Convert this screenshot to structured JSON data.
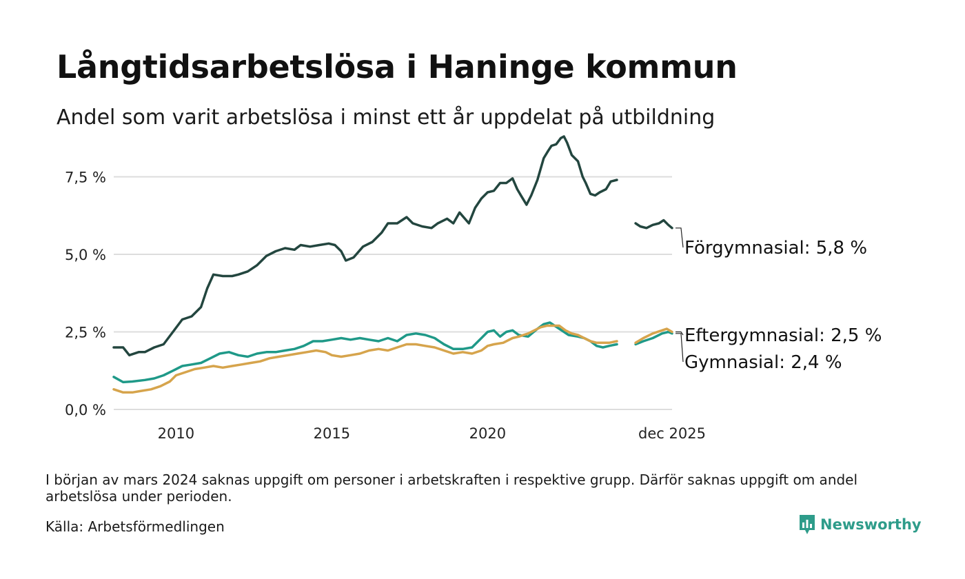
{
  "title": "Långtidsarbetslösa i Haninge kommun",
  "subtitle": "Andel som varit arbetslösa i minst ett år uppdelat på utbildning",
  "footnote": "I början av mars 2024 saknas uppgift om personer i arbetskraften i respektive grupp. Därför saknas uppgift om andel arbetslösa under perioden.",
  "source": "Källa: Arbetsförmedlingen",
  "brand": "Newsworthy",
  "colors": {
    "forgymnasial": "#23463f",
    "gymnasial": "#1f9988",
    "eftergymnasial": "#d6a44c",
    "grid": "#dddddd",
    "brand": "#2e9c8a"
  },
  "chart_data": {
    "type": "line",
    "title": "Långtidsarbetslösa i Haninge kommun",
    "xlabel": "",
    "ylabel": "",
    "xlim": [
      2008.0,
      2025.92
    ],
    "ylim": [
      0,
      9
    ],
    "x_ticks": [
      {
        "value": 2010,
        "label": "2010"
      },
      {
        "value": 2015,
        "label": "2015"
      },
      {
        "value": 2020,
        "label": "2020"
      },
      {
        "value": 2025.92,
        "label": "dec 2025"
      }
    ],
    "y_ticks": [
      {
        "value": 0,
        "label": "0,0 %"
      },
      {
        "value": 2.5,
        "label": "2,5 %"
      },
      {
        "value": 5.0,
        "label": "5,0 %"
      },
      {
        "value": 7.5,
        "label": "7,5 %"
      }
    ],
    "gap": [
      2023.67,
      2024.25
    ],
    "series": [
      {
        "name": "Förgymnasial",
        "label": "Förgymnasial: 5,8 %",
        "color": "#23463f",
        "points": [
          [
            2008.0,
            2.0
          ],
          [
            2008.3,
            2.0
          ],
          [
            2008.5,
            1.75
          ],
          [
            2008.8,
            1.85
          ],
          [
            2009.0,
            1.85
          ],
          [
            2009.3,
            2.0
          ],
          [
            2009.6,
            2.1
          ],
          [
            2009.9,
            2.5
          ],
          [
            2010.2,
            2.9
          ],
          [
            2010.5,
            3.0
          ],
          [
            2010.8,
            3.3
          ],
          [
            2011.0,
            3.9
          ],
          [
            2011.2,
            4.35
          ],
          [
            2011.5,
            4.3
          ],
          [
            2011.8,
            4.3
          ],
          [
            2012.0,
            4.35
          ],
          [
            2012.3,
            4.45
          ],
          [
            2012.6,
            4.65
          ],
          [
            2012.9,
            4.95
          ],
          [
            2013.2,
            5.1
          ],
          [
            2013.5,
            5.2
          ],
          [
            2013.8,
            5.15
          ],
          [
            2014.0,
            5.3
          ],
          [
            2014.3,
            5.25
          ],
          [
            2014.6,
            5.3
          ],
          [
            2014.9,
            5.35
          ],
          [
            2015.1,
            5.3
          ],
          [
            2015.3,
            5.1
          ],
          [
            2015.45,
            4.8
          ],
          [
            2015.7,
            4.9
          ],
          [
            2016.0,
            5.25
          ],
          [
            2016.3,
            5.4
          ],
          [
            2016.6,
            5.7
          ],
          [
            2016.8,
            6.0
          ],
          [
            2017.1,
            6.0
          ],
          [
            2017.4,
            6.2
          ],
          [
            2017.6,
            6.0
          ],
          [
            2017.9,
            5.9
          ],
          [
            2018.2,
            5.85
          ],
          [
            2018.4,
            6.0
          ],
          [
            2018.7,
            6.15
          ],
          [
            2018.9,
            6.0
          ],
          [
            2019.1,
            6.35
          ],
          [
            2019.4,
            6.0
          ],
          [
            2019.6,
            6.5
          ],
          [
            2019.8,
            6.8
          ],
          [
            2020.0,
            7.0
          ],
          [
            2020.2,
            7.05
          ],
          [
            2020.4,
            7.3
          ],
          [
            2020.6,
            7.3
          ],
          [
            2020.8,
            7.45
          ],
          [
            2020.95,
            7.1
          ],
          [
            2021.1,
            6.85
          ],
          [
            2021.25,
            6.6
          ],
          [
            2021.4,
            6.9
          ],
          [
            2021.6,
            7.4
          ],
          [
            2021.8,
            8.1
          ],
          [
            2021.95,
            8.35
          ],
          [
            2022.05,
            8.5
          ],
          [
            2022.2,
            8.55
          ],
          [
            2022.35,
            8.75
          ],
          [
            2022.45,
            8.8
          ],
          [
            2022.55,
            8.6
          ],
          [
            2022.7,
            8.2
          ],
          [
            2022.9,
            8.0
          ],
          [
            2023.05,
            7.5
          ],
          [
            2023.15,
            7.3
          ],
          [
            2023.3,
            6.95
          ],
          [
            2023.45,
            6.9
          ],
          [
            2023.6,
            7.0
          ],
          [
            2023.8,
            7.1
          ],
          [
            2023.95,
            7.35
          ],
          [
            2024.15,
            7.4
          ],
          [
            null,
            null
          ],
          [
            2024.75,
            6.0
          ],
          [
            2024.9,
            5.9
          ],
          [
            2025.1,
            5.85
          ],
          [
            2025.3,
            5.95
          ],
          [
            2025.5,
            6.0
          ],
          [
            2025.65,
            6.1
          ],
          [
            2025.8,
            5.95
          ],
          [
            2025.92,
            5.85
          ]
        ]
      },
      {
        "name": "Gymnasial",
        "label": "Gymnasial: 2,4 %",
        "color": "#1f9988",
        "points": [
          [
            2008.0,
            1.05
          ],
          [
            2008.3,
            0.88
          ],
          [
            2008.6,
            0.9
          ],
          [
            2009.0,
            0.95
          ],
          [
            2009.3,
            1.0
          ],
          [
            2009.6,
            1.1
          ],
          [
            2009.9,
            1.25
          ],
          [
            2010.2,
            1.4
          ],
          [
            2010.5,
            1.45
          ],
          [
            2010.8,
            1.5
          ],
          [
            2011.1,
            1.65
          ],
          [
            2011.4,
            1.8
          ],
          [
            2011.7,
            1.85
          ],
          [
            2012.0,
            1.75
          ],
          [
            2012.3,
            1.7
          ],
          [
            2012.6,
            1.8
          ],
          [
            2012.9,
            1.85
          ],
          [
            2013.2,
            1.85
          ],
          [
            2013.5,
            1.9
          ],
          [
            2013.8,
            1.95
          ],
          [
            2014.1,
            2.05
          ],
          [
            2014.4,
            2.2
          ],
          [
            2014.7,
            2.2
          ],
          [
            2015.0,
            2.25
          ],
          [
            2015.3,
            2.3
          ],
          [
            2015.6,
            2.25
          ],
          [
            2015.9,
            2.3
          ],
          [
            2016.2,
            2.25
          ],
          [
            2016.5,
            2.2
          ],
          [
            2016.8,
            2.3
          ],
          [
            2017.1,
            2.2
          ],
          [
            2017.4,
            2.4
          ],
          [
            2017.7,
            2.45
          ],
          [
            2018.0,
            2.4
          ],
          [
            2018.3,
            2.3
          ],
          [
            2018.6,
            2.1
          ],
          [
            2018.9,
            1.95
          ],
          [
            2019.2,
            1.95
          ],
          [
            2019.5,
            2.0
          ],
          [
            2019.8,
            2.3
          ],
          [
            2020.0,
            2.5
          ],
          [
            2020.2,
            2.55
          ],
          [
            2020.4,
            2.35
          ],
          [
            2020.6,
            2.5
          ],
          [
            2020.8,
            2.55
          ],
          [
            2021.0,
            2.4
          ],
          [
            2021.3,
            2.35
          ],
          [
            2021.6,
            2.6
          ],
          [
            2021.8,
            2.75
          ],
          [
            2022.0,
            2.8
          ],
          [
            2022.3,
            2.6
          ],
          [
            2022.6,
            2.4
          ],
          [
            2022.9,
            2.35
          ],
          [
            2023.1,
            2.3
          ],
          [
            2023.3,
            2.2
          ],
          [
            2023.5,
            2.05
          ],
          [
            2023.7,
            2.0
          ],
          [
            2023.9,
            2.05
          ],
          [
            2024.15,
            2.1
          ],
          [
            null,
            null
          ],
          [
            2024.75,
            2.1
          ],
          [
            2025.0,
            2.2
          ],
          [
            2025.3,
            2.3
          ],
          [
            2025.6,
            2.45
          ],
          [
            2025.8,
            2.5
          ],
          [
            2025.92,
            2.45
          ]
        ]
      },
      {
        "name": "Eftergymnasial",
        "label": "Eftergymnasial: 2,5 %",
        "color": "#d6a44c",
        "points": [
          [
            2008.0,
            0.65
          ],
          [
            2008.3,
            0.55
          ],
          [
            2008.6,
            0.55
          ],
          [
            2008.9,
            0.6
          ],
          [
            2009.2,
            0.65
          ],
          [
            2009.5,
            0.75
          ],
          [
            2009.8,
            0.9
          ],
          [
            2010.0,
            1.1
          ],
          [
            2010.3,
            1.2
          ],
          [
            2010.6,
            1.3
          ],
          [
            2010.9,
            1.35
          ],
          [
            2011.2,
            1.4
          ],
          [
            2011.5,
            1.35
          ],
          [
            2011.8,
            1.4
          ],
          [
            2012.1,
            1.45
          ],
          [
            2012.4,
            1.5
          ],
          [
            2012.7,
            1.55
          ],
          [
            2013.0,
            1.65
          ],
          [
            2013.3,
            1.7
          ],
          [
            2013.6,
            1.75
          ],
          [
            2013.9,
            1.8
          ],
          [
            2014.2,
            1.85
          ],
          [
            2014.5,
            1.9
          ],
          [
            2014.8,
            1.85
          ],
          [
            2015.0,
            1.75
          ],
          [
            2015.3,
            1.7
          ],
          [
            2015.6,
            1.75
          ],
          [
            2015.9,
            1.8
          ],
          [
            2016.2,
            1.9
          ],
          [
            2016.5,
            1.95
          ],
          [
            2016.8,
            1.9
          ],
          [
            2017.1,
            2.0
          ],
          [
            2017.4,
            2.1
          ],
          [
            2017.7,
            2.1
          ],
          [
            2018.0,
            2.05
          ],
          [
            2018.3,
            2.0
          ],
          [
            2018.6,
            1.9
          ],
          [
            2018.9,
            1.8
          ],
          [
            2019.2,
            1.85
          ],
          [
            2019.5,
            1.8
          ],
          [
            2019.8,
            1.9
          ],
          [
            2020.0,
            2.05
          ],
          [
            2020.2,
            2.1
          ],
          [
            2020.5,
            2.15
          ],
          [
            2020.8,
            2.3
          ],
          [
            2021.0,
            2.35
          ],
          [
            2021.3,
            2.45
          ],
          [
            2021.5,
            2.55
          ],
          [
            2021.7,
            2.65
          ],
          [
            2021.9,
            2.7
          ],
          [
            2022.1,
            2.7
          ],
          [
            2022.3,
            2.7
          ],
          [
            2022.5,
            2.55
          ],
          [
            2022.7,
            2.45
          ],
          [
            2022.9,
            2.4
          ],
          [
            2023.1,
            2.3
          ],
          [
            2023.3,
            2.2
          ],
          [
            2023.5,
            2.15
          ],
          [
            2023.7,
            2.15
          ],
          [
            2023.9,
            2.15
          ],
          [
            2024.15,
            2.2
          ],
          [
            null,
            null
          ],
          [
            2024.75,
            2.15
          ],
          [
            2025.0,
            2.3
          ],
          [
            2025.3,
            2.45
          ],
          [
            2025.6,
            2.55
          ],
          [
            2025.75,
            2.6
          ],
          [
            2025.92,
            2.5
          ]
        ]
      }
    ]
  }
}
